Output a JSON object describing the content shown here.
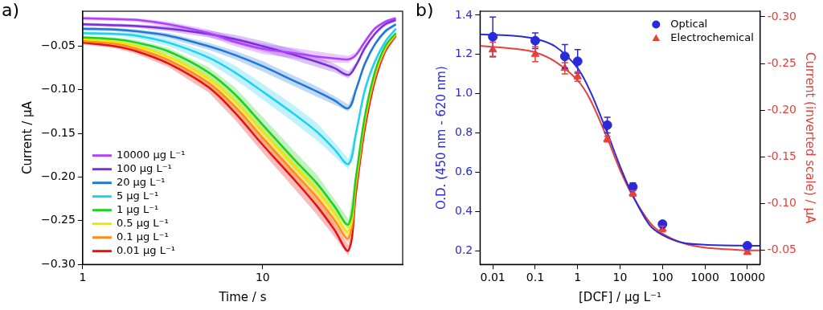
{
  "chart_data": [
    {
      "type": "line",
      "annotation": "a)",
      "x_label": "Time / s",
      "y_label": "Current / µA",
      "log": "x",
      "grid": false,
      "legend": "lower left",
      "xlim": [
        1,
        60
      ],
      "xticks": [
        1,
        10
      ],
      "ylim": [
        -0.3,
        -0.01
      ],
      "yticks": [
        {
          "value": -0.3,
          "label": "−0.30"
        },
        {
          "value": -0.25,
          "label": "−0.25"
        },
        {
          "value": -0.2,
          "label": "−0.20"
        },
        {
          "value": -0.15,
          "label": "−0.15"
        },
        {
          "value": -0.1,
          "label": "−0.10"
        },
        {
          "value": -0.05,
          "label": "−0.05"
        }
      ],
      "x": [
        1,
        1.5,
        2,
        3,
        5,
        7,
        10,
        15,
        20,
        25,
        30,
        33,
        37,
        42,
        48,
        55
      ],
      "series": [
        {
          "name": "10000 µg L⁻¹",
          "color": "#b040ff",
          "values": [
            -0.018,
            -0.019,
            -0.02,
            -0.025,
            -0.035,
            -0.045,
            -0.053,
            -0.058,
            -0.062,
            -0.064,
            -0.065,
            -0.06,
            -0.045,
            -0.03,
            -0.022,
            -0.018
          ],
          "error": [
            0.002,
            0.002,
            0.002,
            0.003,
            0.004,
            0.005,
            0.006,
            0.006,
            0.006,
            0.005,
            0.004,
            0.003,
            0.003,
            0.002,
            0.002,
            0.002
          ]
        },
        {
          "name": "100 µg L⁻¹",
          "color": "#7a30d8",
          "values": [
            -0.025,
            -0.026,
            -0.027,
            -0.03,
            -0.036,
            -0.042,
            -0.05,
            -0.06,
            -0.068,
            -0.075,
            -0.083,
            -0.072,
            -0.052,
            -0.036,
            -0.025,
            -0.02
          ],
          "error": [
            0.002,
            0.002,
            0.002,
            0.003,
            0.004,
            0.005,
            0.006,
            0.006,
            0.006,
            0.005,
            0.004,
            0.003,
            0.003,
            0.002,
            0.002,
            0.002
          ]
        },
        {
          "name": "20 µg L⁻¹",
          "color": "#1f78d8",
          "values": [
            -0.03,
            -0.031,
            -0.033,
            -0.038,
            -0.05,
            -0.06,
            -0.073,
            -0.09,
            -0.102,
            -0.112,
            -0.121,
            -0.1,
            -0.07,
            -0.048,
            -0.033,
            -0.025
          ],
          "error": [
            0.002,
            0.002,
            0.002,
            0.003,
            0.004,
            0.005,
            0.006,
            0.006,
            0.006,
            0.005,
            0.004,
            0.003,
            0.003,
            0.002,
            0.002,
            0.002
          ]
        },
        {
          "name": "5 µg L⁻¹",
          "color": "#20d0f0",
          "values": [
            -0.035,
            -0.036,
            -0.038,
            -0.046,
            -0.063,
            -0.08,
            -0.102,
            -0.128,
            -0.148,
            -0.168,
            -0.185,
            -0.15,
            -0.1,
            -0.068,
            -0.045,
            -0.03
          ],
          "error": [
            0.002,
            0.002,
            0.003,
            0.004,
            0.006,
            0.008,
            0.009,
            0.01,
            0.01,
            0.008,
            0.006,
            0.005,
            0.004,
            0.003,
            0.002,
            0.002
          ]
        },
        {
          "name": "1 µg L⁻¹",
          "color": "#20d020",
          "values": [
            -0.04,
            -0.042,
            -0.046,
            -0.056,
            -0.08,
            -0.105,
            -0.14,
            -0.18,
            -0.207,
            -0.233,
            -0.254,
            -0.2,
            -0.13,
            -0.08,
            -0.05,
            -0.035
          ],
          "error": [
            0.002,
            0.002,
            0.003,
            0.004,
            0.006,
            0.008,
            0.009,
            0.01,
            0.01,
            0.008,
            0.006,
            0.005,
            0.004,
            0.003,
            0.002,
            0.002
          ]
        },
        {
          "name": "0.5 µg L⁻¹",
          "color": "#f0e600",
          "values": [
            -0.042,
            -0.045,
            -0.05,
            -0.062,
            -0.087,
            -0.113,
            -0.148,
            -0.187,
            -0.215,
            -0.241,
            -0.262,
            -0.205,
            -0.134,
            -0.083,
            -0.052,
            -0.036
          ],
          "error": [
            0.002,
            0.002,
            0.003,
            0.004,
            0.006,
            0.008,
            0.009,
            0.01,
            0.01,
            0.008,
            0.006,
            0.005,
            0.004,
            0.003,
            0.002,
            0.002
          ]
        },
        {
          "name": "0.1 µg L⁻¹",
          "color": "#ff8c1a",
          "values": [
            -0.044,
            -0.047,
            -0.053,
            -0.066,
            -0.092,
            -0.119,
            -0.155,
            -0.195,
            -0.223,
            -0.249,
            -0.27,
            -0.21,
            -0.138,
            -0.086,
            -0.054,
            -0.037
          ],
          "error": [
            0.002,
            0.002,
            0.003,
            0.004,
            0.006,
            0.008,
            0.009,
            0.01,
            0.01,
            0.008,
            0.006,
            0.005,
            0.004,
            0.003,
            0.002,
            0.002
          ]
        },
        {
          "name": "0.01 µg L⁻¹",
          "color": "#e81010",
          "values": [
            -0.046,
            -0.05,
            -0.056,
            -0.07,
            -0.097,
            -0.126,
            -0.163,
            -0.203,
            -0.233,
            -0.26,
            -0.284,
            -0.218,
            -0.144,
            -0.09,
            -0.056,
            -0.038
          ],
          "error": [
            0.002,
            0.002,
            0.003,
            0.004,
            0.006,
            0.008,
            0.009,
            0.01,
            0.01,
            0.008,
            0.006,
            0.005,
            0.004,
            0.003,
            0.002,
            0.002
          ]
        }
      ]
    },
    {
      "type": "scatter",
      "annotation": "b)",
      "x_label": "[DCF] / µg L⁻¹",
      "y_label": "O.D. (450 nm - 620 nm)",
      "y2_label": "Current (inverted scale) / µA",
      "log": "x",
      "grid": false,
      "legend": "upper right",
      "xlim": [
        0.005,
        20000
      ],
      "xticks": [
        0.01,
        0.1,
        1,
        10,
        100,
        1000,
        10000
      ],
      "ylim": [
        0.13,
        1.42
      ],
      "yticks": [
        0.2,
        0.4,
        0.6,
        0.8,
        {
          "value": 1,
          "label": "1.0"
        },
        1.2,
        1.4
      ],
      "y2lim": [
        -0.035,
        -0.306
      ],
      "y2ticks": [
        {
          "value": -0.3,
          "label": "-0.30"
        },
        {
          "value": -0.25,
          "label": "-0.25"
        },
        {
          "value": -0.2,
          "label": "-0.20"
        },
        {
          "value": -0.15,
          "label": "-0.15"
        },
        {
          "value": -0.1,
          "label": "-0.10"
        },
        {
          "value": -0.05,
          "label": "-0.05"
        }
      ],
      "x": [
        0.01,
        0.1,
        0.5,
        1,
        5,
        20,
        100,
        10000
      ],
      "series": [
        {
          "name": "Optical",
          "color": "#2a2ad8",
          "marker": "circle",
          "values": [
            1.29,
            1.27,
            1.19,
            1.165,
            0.84,
            0.525,
            0.335,
            0.225
          ],
          "error": [
            0.1,
            0.04,
            0.06,
            0.06,
            0.04,
            0.02,
            0.015,
            0.01
          ],
          "fit": {
            "x": [
              0.005,
              0.01,
              0.03,
              0.1,
              0.3,
              1,
              2,
              5,
              10,
              20,
              50,
              100,
              300,
              1000,
              10000,
              20000
            ],
            "values": [
              1.302,
              1.3,
              1.295,
              1.28,
              1.24,
              1.13,
              1.01,
              0.8,
              0.63,
              0.48,
              0.33,
              0.28,
              0.24,
              0.23,
              0.225,
              0.225
            ]
          }
        },
        {
          "name": "Electrochemical",
          "color": "#e8403a",
          "marker": "triangle",
          "axis": "y2",
          "values": [
            -0.265,
            -0.26,
            -0.245,
            -0.236,
            -0.169,
            -0.111,
            -0.073,
            -0.048
          ],
          "error": [
            0.008,
            0.008,
            0.006,
            0.005,
            0.003,
            0.003,
            0.003,
            0.002
          ],
          "fit": {
            "x": [
              0.005,
              0.01,
              0.03,
              0.1,
              0.3,
              1,
              2,
              5,
              10,
              20,
              50,
              100,
              300,
              1000,
              10000,
              20000
            ],
            "values": [
              -0.269,
              -0.268,
              -0.266,
              -0.262,
              -0.252,
              -0.232,
              -0.211,
              -0.17,
              -0.136,
              -0.108,
              -0.08,
              -0.068,
              -0.058,
              -0.053,
              -0.05,
              -0.05
            ]
          }
        }
      ]
    }
  ]
}
